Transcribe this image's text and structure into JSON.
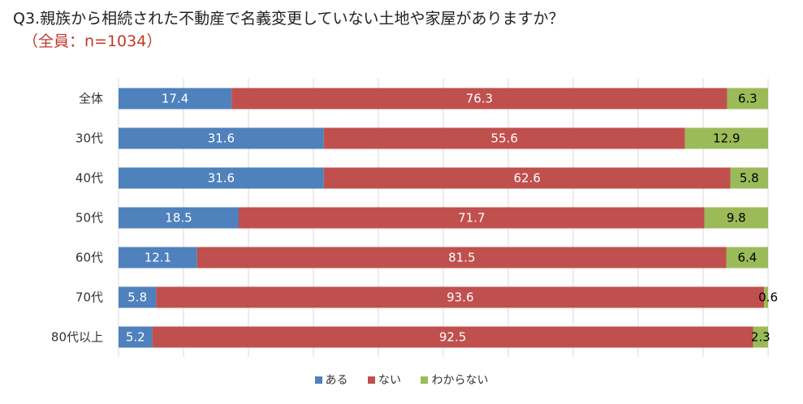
{
  "chart_data": {
    "type": "bar",
    "orientation": "horizontal-stacked-100",
    "title": "Q3.親族から相続された不動産で名義変更していない土地や家屋がありますか？",
    "subtitle": "（全員：n=1034）",
    "categories": [
      "全体",
      "30代",
      "40代",
      "50代",
      "60代",
      "70代",
      "80代以上"
    ],
    "series": [
      {
        "name": "ある",
        "color": "#4f81bd",
        "values": [
          17.4,
          31.6,
          31.6,
          18.5,
          12.1,
          5.8,
          5.2
        ]
      },
      {
        "name": "ない",
        "color": "#c0504d",
        "values": [
          76.3,
          55.6,
          62.6,
          71.7,
          81.5,
          93.6,
          92.5
        ]
      },
      {
        "name": "わからない",
        "color": "#9bbb59",
        "values": [
          6.3,
          12.9,
          5.8,
          9.8,
          6.4,
          0.6,
          2.3
        ]
      }
    ],
    "xlim": [
      0,
      100
    ],
    "legend": "bottom"
  }
}
